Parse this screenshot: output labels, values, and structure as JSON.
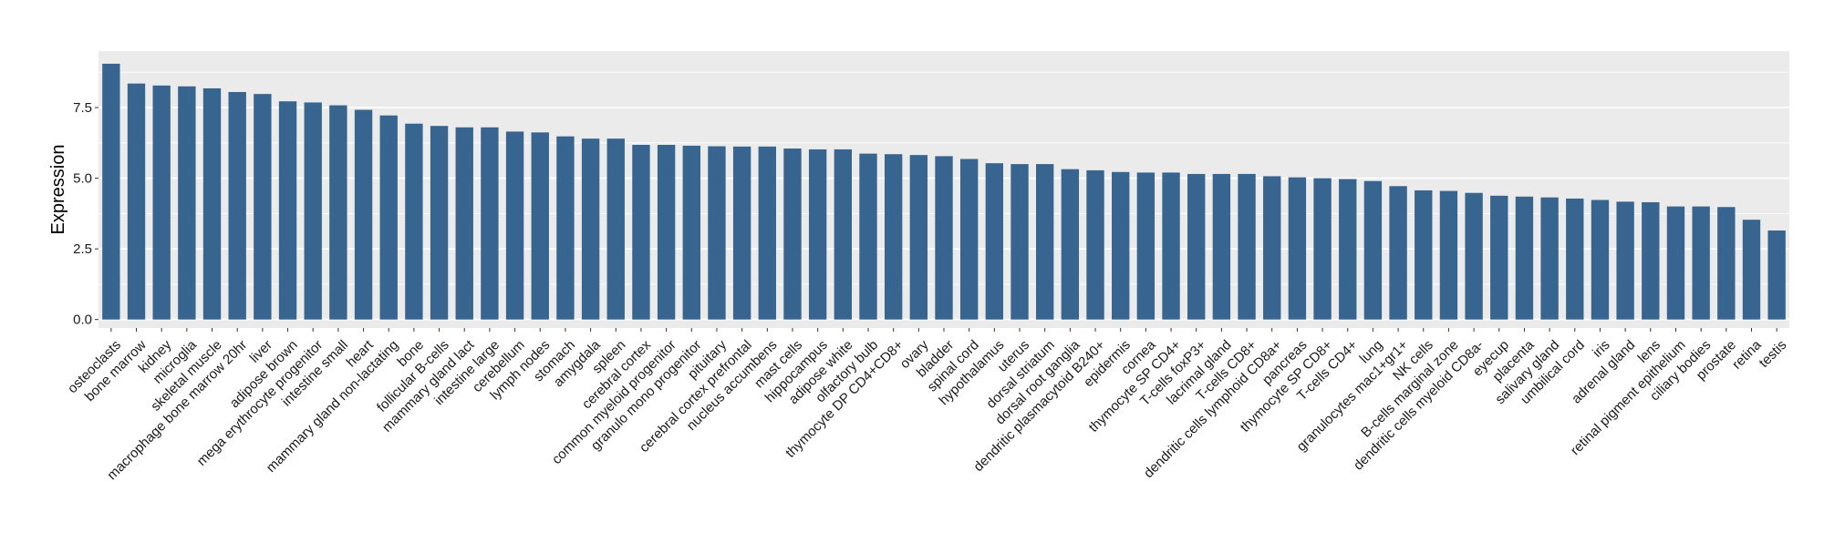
{
  "chart_data": {
    "type": "bar",
    "title": "",
    "xlabel": "",
    "ylabel": "Expression",
    "ylim": [
      -0.3,
      9.5
    ],
    "yticks": [
      0.0,
      2.5,
      5.0,
      7.5
    ],
    "ytick_labels": [
      "0.0",
      "2.5",
      "5.0",
      "7.5"
    ],
    "grid": true,
    "legend": "none",
    "bar_color": "#376590",
    "panel_background": "#ebebeb",
    "gridline_color": "#ffffff",
    "categories": [
      "osteoclasts",
      "bone marrow",
      "kidney",
      "microglia",
      "skeletal muscle",
      "macrophage bone marrow 20hr",
      "liver",
      "adipose brown",
      "mega erythrocyte progenitor",
      "intestine small",
      "heart",
      "mammary gland non-lactating",
      "bone",
      "follicular B-cells",
      "mammary gland  lact",
      "intestine large",
      "cerebellum",
      "lymph nodes",
      "stomach",
      "amygdala",
      "spleen",
      "cerebral cortex",
      "common myeloid progenitor",
      "granulo mono progenitor",
      "pituitary",
      "cerebral cortex prefrontal",
      "nucleus accumbens",
      "mast cells",
      "hippocampus",
      "adipose white",
      "olfactory bulb",
      "thymocyte DP CD4+CD8+",
      "ovary",
      "bladder",
      "spinal cord",
      "hypothalamus",
      "uterus",
      "dorsal striatum",
      "dorsal root ganglia",
      "dendritic plasmacytoid B240+",
      "epidermis",
      "cornea",
      "thymocyte SP CD4+",
      "T-cells foxP3+",
      "lacrimal gland",
      "T-cells CD8+",
      "dendritic cells lymphoid CD8a+",
      "pancreas",
      "thymocyte SP CD8+",
      "T-cells CD4+",
      "lung",
      "granulocytes mac1+gr1+",
      "NK cells",
      "B-cells marginal zone",
      "dendritic cells myeloid CD8a-",
      "eyecup",
      "placenta",
      "salivary gland",
      "umbilical cord",
      "iris",
      "adrenal gland",
      "lens",
      "retinal pigment epithelium",
      "ciliary bodies",
      "prostate",
      "retina",
      "testis"
    ],
    "values": [
      9.05,
      8.35,
      8.28,
      8.25,
      8.18,
      8.05,
      7.98,
      7.72,
      7.68,
      7.58,
      7.42,
      7.22,
      6.93,
      6.85,
      6.8,
      6.8,
      6.65,
      6.62,
      6.48,
      6.4,
      6.4,
      6.18,
      6.18,
      6.15,
      6.13,
      6.12,
      6.12,
      6.05,
      6.02,
      6.02,
      5.87,
      5.85,
      5.82,
      5.78,
      5.68,
      5.53,
      5.5,
      5.5,
      5.32,
      5.28,
      5.22,
      5.2,
      5.2,
      5.15,
      5.15,
      5.15,
      5.07,
      5.03,
      5.0,
      4.97,
      4.9,
      4.72,
      4.57,
      4.55,
      4.48,
      4.38,
      4.35,
      4.32,
      4.28,
      4.23,
      4.17,
      4.15,
      4.0,
      4.0,
      3.98,
      3.53,
      3.15
    ]
  }
}
